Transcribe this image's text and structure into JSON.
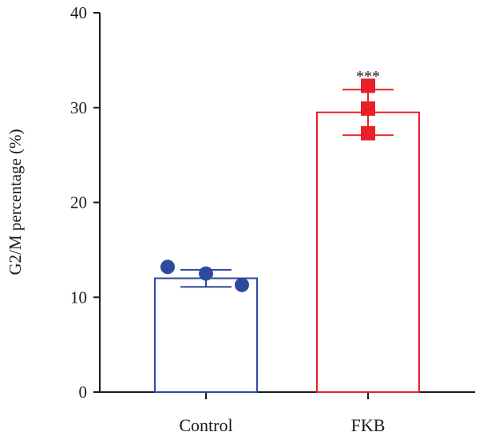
{
  "chart_data": {
    "type": "bar",
    "categories": [
      "Control",
      "FKB"
    ],
    "ylabel": "G2/M percentage (%)",
    "xlabel": "",
    "ylim": [
      0,
      40
    ],
    "yticks": [
      0,
      10,
      20,
      30,
      40
    ],
    "grid": false,
    "legend": "none",
    "bars": [
      {
        "category": "Control",
        "mean": 12.0,
        "error": 0.9,
        "points": [
          13.2,
          12.5,
          11.3
        ],
        "color": "#2e4a9e",
        "marker": "circle",
        "significance": ""
      },
      {
        "category": "FKB",
        "mean": 29.5,
        "error": 2.4,
        "points": [
          32.3,
          29.9,
          27.3
        ],
        "color": "#e8202a",
        "marker": "square",
        "significance": "***"
      }
    ]
  }
}
